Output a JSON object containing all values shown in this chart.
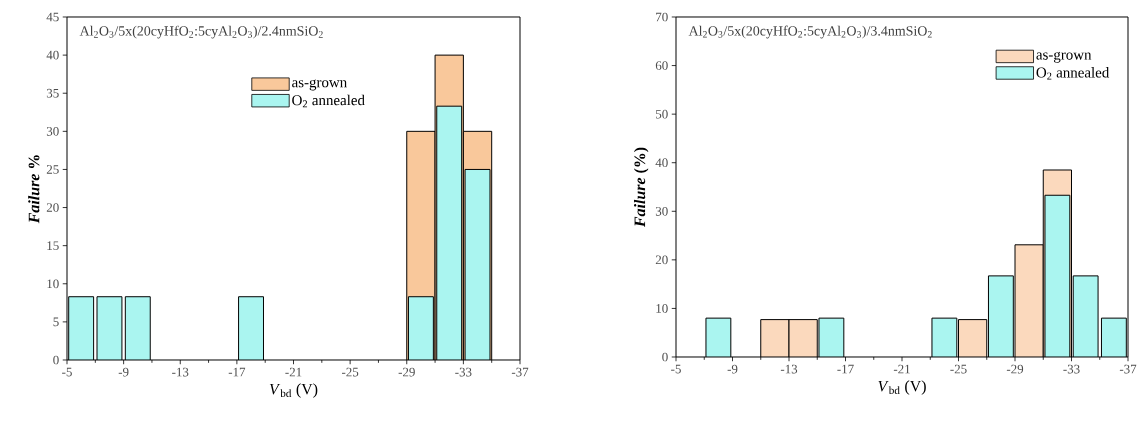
{
  "chart_data": [
    {
      "type": "histogram",
      "annotations": [
        "Al$_{2}$O$_{3}$/5x(20cyHfO$_{2}$:5cyAl$_{2}$O$_{3}$)/2.4nmSiO$_{2}$"
      ],
      "xlabel": "*V*$_{bd}$ (V)",
      "ylabel": "*Failure* %",
      "bins": [
        -5,
        -7,
        -9,
        -11,
        -13,
        -15,
        -17,
        -19,
        -21,
        -23,
        -25,
        -27,
        -29,
        -31,
        -33,
        -35,
        -37
      ],
      "xlim": [
        -5,
        -37
      ],
      "xticks": [
        -5,
        -9,
        -13,
        -17,
        -21,
        -25,
        -29,
        -33,
        -37
      ],
      "ylim": [
        0,
        45
      ],
      "yticks": [
        0,
        5,
        10,
        15,
        20,
        25,
        30,
        35,
        40,
        45
      ],
      "legend": "top",
      "series": [
        {
          "name": "as-grown",
          "color": "#f9c89b",
          "values": [
            null,
            null,
            null,
            null,
            null,
            null,
            null,
            null,
            null,
            null,
            null,
            null,
            30,
            40,
            30,
            null
          ]
        },
        {
          "name": "O$_{2}$ annealed",
          "color": "#aaf5f0",
          "values": [
            8.3,
            8.3,
            8.3,
            null,
            null,
            null,
            8.3,
            null,
            null,
            null,
            null,
            null,
            8.3,
            33.3,
            25,
            null
          ]
        }
      ]
    },
    {
      "type": "histogram",
      "annotations": [
        "Al$_{2}$O$_{3}$/5x(20cyHfO$_{2}$:5cyAl$_{2}$O$_{3}$)/3.4nmSiO$_{2}$"
      ],
      "xlabel": "*V*$_{bd}$ (V)",
      "ylabel": "*Failure* (%)",
      "bins": [
        -5,
        -7,
        -9,
        -11,
        -13,
        -15,
        -17,
        -19,
        -21,
        -23,
        -25,
        -27,
        -29,
        -31,
        -33,
        -35,
        -37
      ],
      "xlim": [
        -5,
        -37
      ],
      "xticks": [
        -5,
        -9,
        -13,
        -17,
        -21,
        -25,
        -29,
        -33,
        -37
      ],
      "ylim": [
        0,
        70
      ],
      "yticks": [
        0,
        10,
        20,
        30,
        40,
        50,
        60,
        70
      ],
      "legend": "top right",
      "series": [
        {
          "name": "as-grown",
          "color": "#fbd9bd",
          "values": [
            null,
            null,
            null,
            7.7,
            7.7,
            null,
            null,
            null,
            null,
            null,
            7.7,
            null,
            23.1,
            38.5,
            null,
            null
          ]
        },
        {
          "name": "O$_{2}$ annealed",
          "color": "#aaf5f0",
          "values": [
            null,
            8,
            null,
            null,
            null,
            8,
            null,
            null,
            null,
            8,
            null,
            16.7,
            null,
            33.3,
            16.7,
            8
          ]
        }
      ]
    }
  ]
}
